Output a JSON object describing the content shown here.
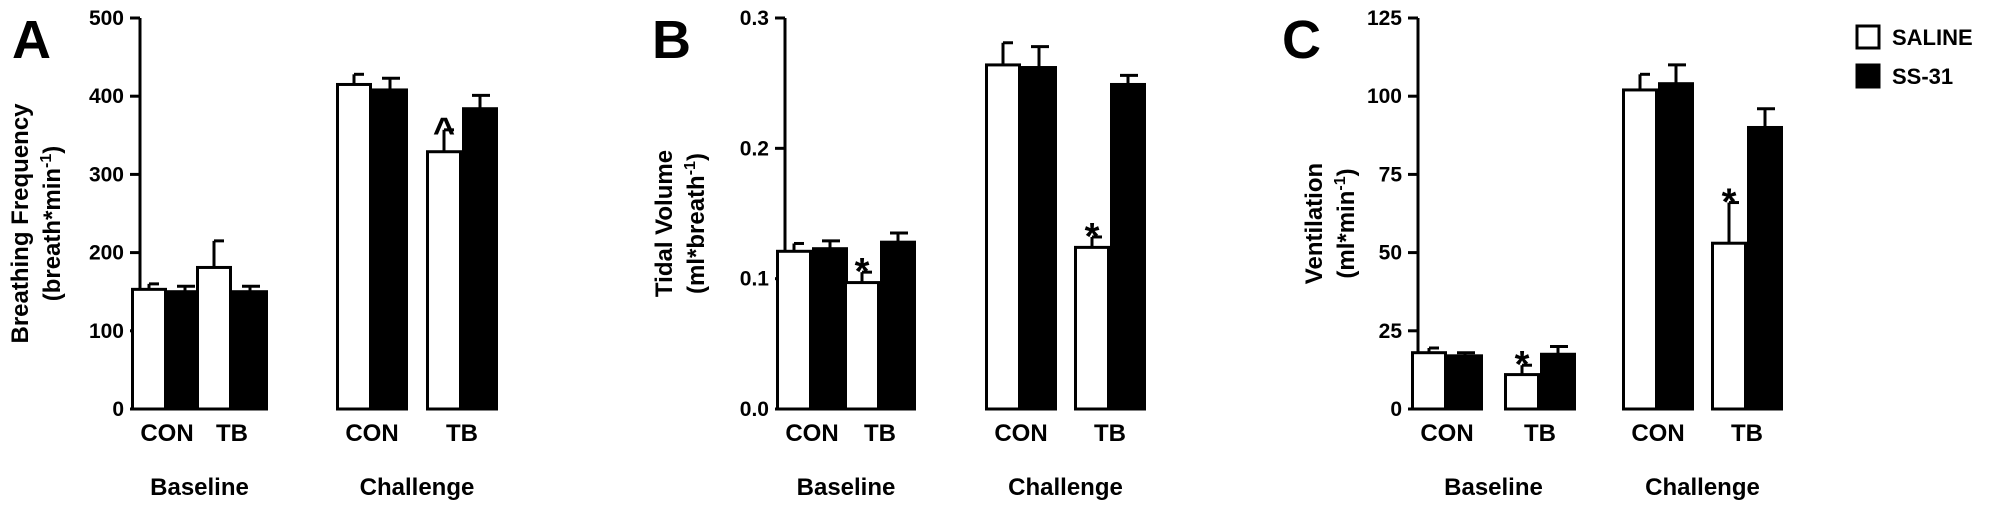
{
  "chart_data": [
    {
      "type": "bar",
      "panel": "A",
      "ylabel_line1": "Breathing Frequency",
      "ylabel_line2": "(breath*min",
      "ylabel_sup": "-1",
      "ylabel_close": ")",
      "ylim": [
        0,
        500
      ],
      "yticks": [
        "0",
        "100",
        "200",
        "300",
        "400",
        "500"
      ],
      "groups": [
        "Baseline",
        "Challenge"
      ],
      "categories": [
        "CON",
        "TB",
        "CON",
        "TB"
      ],
      "series": [
        {
          "name": "SALINE",
          "values": [
            153,
            181,
            415,
            329
          ],
          "errors": [
            7,
            34,
            13,
            28
          ]
        },
        {
          "name": "SS-31",
          "values": [
            150,
            150,
            408,
            384
          ],
          "errors": [
            7,
            7,
            15,
            17
          ]
        }
      ],
      "annotations": [
        {
          "text": "^",
          "series": 0,
          "category": 3
        }
      ]
    },
    {
      "type": "bar",
      "panel": "B",
      "ylabel_line1": "Tidal Volume",
      "ylabel_line2": "(ml*breath",
      "ylabel_sup": "-1",
      "ylabel_close": ")",
      "ylim": [
        0,
        0.3
      ],
      "yticks": [
        "0.0",
        "0.1",
        "0.2",
        "0.3"
      ],
      "groups": [
        "Baseline",
        "Challenge"
      ],
      "categories": [
        "CON",
        "TB",
        "CON",
        "TB"
      ],
      "series": [
        {
          "name": "SALINE",
          "values": [
            0.121,
            0.097,
            0.264,
            0.124
          ],
          "errors": [
            0.006,
            0.008,
            0.017,
            0.008
          ]
        },
        {
          "name": "SS-31",
          "values": [
            0.123,
            0.128,
            0.262,
            0.249
          ],
          "errors": [
            0.006,
            0.007,
            0.016,
            0.007
          ]
        }
      ],
      "annotations": [
        {
          "text": "*",
          "series": 0,
          "category": 1
        },
        {
          "text": "*",
          "series": 0,
          "category": 3
        }
      ]
    },
    {
      "type": "bar",
      "panel": "C",
      "ylabel_line1": "Ventilation",
      "ylabel_line2": "(ml*min",
      "ylabel_sup": "-1",
      "ylabel_close": ")",
      "ylim": [
        0,
        125
      ],
      "yticks": [
        "0",
        "25",
        "50",
        "75",
        "100",
        "125"
      ],
      "groups": [
        "Baseline",
        "Challenge"
      ],
      "categories": [
        "CON",
        "TB",
        "CON",
        "TB"
      ],
      "series": [
        {
          "name": "SALINE",
          "values": [
            18,
            11,
            102,
            53
          ],
          "errors": [
            1.5,
            3,
            5,
            13
          ]
        },
        {
          "name": "SS-31",
          "values": [
            17,
            17.5,
            104,
            90
          ],
          "errors": [
            1,
            2.5,
            6,
            6
          ]
        }
      ],
      "annotations": [
        {
          "text": "*",
          "series": 0,
          "category": 1
        },
        {
          "text": "*",
          "series": 0,
          "category": 3
        }
      ]
    }
  ],
  "legend": [
    {
      "label": "SALINE",
      "color": "#ffffff"
    },
    {
      "label": "SS-31",
      "color": "#000000"
    }
  ]
}
